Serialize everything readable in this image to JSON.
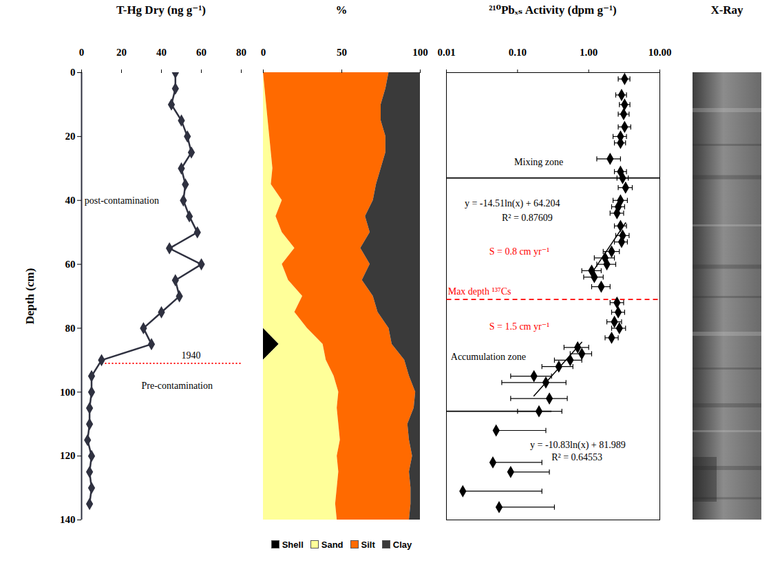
{
  "chart_data": [
    {
      "type": "line",
      "x_label": "T-Hg Dry (ng g⁻¹)",
      "y_label": "Depth (cm)",
      "xlim": [
        0,
        80
      ],
      "xticks": [
        0,
        20,
        40,
        60,
        80
      ],
      "ylim": [
        0,
        140
      ],
      "yticks": [
        0,
        20,
        40,
        60,
        80,
        100,
        120,
        140
      ],
      "color": "#2f3140",
      "marker": "diamond",
      "y": [
        0,
        5,
        10,
        15,
        20,
        25,
        30,
        35,
        40,
        45,
        50,
        55,
        60,
        65,
        70,
        75,
        80,
        85,
        90,
        95,
        100,
        105,
        110,
        115,
        120,
        125,
        130,
        135
      ],
      "values": [
        47,
        47,
        45,
        50,
        53,
        55,
        50,
        52,
        51,
        54,
        58,
        44,
        60,
        47,
        49,
        40,
        31,
        35,
        10,
        5,
        5,
        4,
        4,
        3,
        5,
        4,
        5,
        4
      ],
      "lines": [
        {
          "y": 91,
          "x": [
            10,
            80
          ],
          "color": "#ff0000",
          "line_style": "dotted"
        }
      ],
      "annotations": [
        {
          "text": "post-contamination",
          "x": 1.5,
          "y": 40
        },
        {
          "text": "1940",
          "x": 50,
          "y": 88.5
        },
        {
          "text": "Pre-contamination",
          "x": 30,
          "y": 98
        }
      ]
    },
    {
      "type": "area",
      "x_label": "%",
      "xlim": [
        0,
        100
      ],
      "xticks": [
        0,
        50,
        100
      ],
      "ylim": [
        0,
        140
      ],
      "stacked": true,
      "legend": "bottom",
      "tick_labels": "x",
      "y": [
        0,
        5,
        10,
        15,
        20,
        25,
        30,
        35,
        40,
        45,
        50,
        55,
        60,
        65,
        70,
        75,
        80,
        85,
        90,
        95,
        100,
        105,
        110,
        115,
        120,
        125,
        130,
        135,
        140
      ],
      "series": [
        {
          "name": "Shell",
          "color": "#000000",
          "values": [
            0,
            0,
            0,
            0,
            0,
            0,
            0,
            0,
            0,
            0,
            0,
            0,
            0,
            0,
            0,
            0,
            0,
            10,
            0,
            0,
            0,
            0,
            0,
            0,
            0,
            0,
            0,
            0,
            0
          ]
        },
        {
          "name": "Sand",
          "color": "#ffff99",
          "values": [
            0,
            1,
            2,
            3,
            4,
            5,
            6,
            5,
            12,
            8,
            12,
            20,
            12,
            16,
            25,
            20,
            28,
            28,
            40,
            45,
            48,
            47,
            48,
            49,
            47,
            48,
            47,
            46,
            47
          ]
        },
        {
          "name": "Silt",
          "color": "#ff6a00",
          "values": [
            80,
            77,
            73,
            72,
            74,
            73,
            69,
            67,
            58,
            57,
            56,
            42,
            56,
            47,
            45,
            53,
            52,
            44,
            50,
            48,
            49,
            49,
            44,
            44,
            48,
            45,
            47,
            48,
            46
          ]
        },
        {
          "name": "Clay",
          "color": "#3a3a3a",
          "values": [
            20,
            22,
            25,
            25,
            22,
            22,
            25,
            28,
            30,
            35,
            32,
            38,
            32,
            37,
            30,
            27,
            20,
            18,
            10,
            7,
            3,
            4,
            8,
            7,
            5,
            7,
            6,
            6,
            7
          ]
        }
      ]
    },
    {
      "type": "scatter",
      "x_label": "²¹⁰Pbₓₛ Activity (dpm g⁻¹)",
      "log": "x",
      "xlim": [
        0.01,
        10
      ],
      "xticks": [
        0.01,
        {
          "value": 0.1,
          "label": "0.10"
        },
        {
          "value": 1,
          "label": "1.00"
        },
        {
          "value": 10,
          "label": "10.00"
        }
      ],
      "ylim": [
        0,
        140
      ],
      "tick_labels": "x",
      "color": "#000000",
      "marker": "diamond",
      "y": [
        2,
        7,
        10,
        13,
        17,
        20,
        22,
        27,
        31,
        33,
        36,
        40,
        42,
        44,
        48,
        51,
        53,
        56,
        58,
        60,
        62,
        64,
        67,
        72,
        75,
        78,
        80,
        83,
        86,
        88,
        90,
        92,
        95,
        97,
        102,
        106,
        112,
        122,
        125,
        131,
        136
      ],
      "values": [
        3.2,
        2.9,
        3.2,
        3.1,
        3.2,
        2.8,
        2.8,
        2.0,
        2.8,
        3.0,
        3.3,
        2.8,
        2.6,
        2.5,
        2.8,
        3.0,
        2.9,
        2.1,
        1.7,
        1.8,
        1.1,
        1.2,
        1.5,
        2.5,
        2.6,
        2.3,
        2.7,
        2.1,
        0.7,
        0.8,
        0.55,
        0.38,
        0.17,
        0.25,
        0.28,
        0.2,
        0.05,
        0.045,
        0.08,
        0.017,
        0.055
      ],
      "error_low": [
        2.6,
        2.4,
        2.7,
        2.6,
        2.6,
        2.2,
        2.3,
        1.3,
        2.3,
        2.5,
        2.6,
        2.2,
        2.1,
        2.0,
        2.3,
        2.4,
        2.3,
        1.6,
        1.2,
        1.3,
        0.8,
        0.85,
        1.1,
        2.0,
        2.1,
        1.8,
        2.1,
        1.7,
        0.45,
        0.55,
        0.33,
        0.22,
        0.08,
        0.06,
        0.08,
        0.1,
        0.05,
        0.045,
        0.08,
        0.017,
        0.055
      ],
      "error_high": [
        3.8,
        3.4,
        3.8,
        3.7,
        3.9,
        3.4,
        3.3,
        2.8,
        3.4,
        3.6,
        4.1,
        3.5,
        3.2,
        3.1,
        3.4,
        3.7,
        3.5,
        2.7,
        2.3,
        2.4,
        1.5,
        1.6,
        2.0,
        3.1,
        3.2,
        2.9,
        3.3,
        2.6,
        1.0,
        1.1,
        0.8,
        0.6,
        0.3,
        0.48,
        0.5,
        0.42,
        0.25,
        0.22,
        0.28,
        0.22,
        0.33
      ],
      "fit_lines": [
        {
          "x": [
            3.3,
            1.1
          ],
          "y": [
            47,
            62.8
          ]
        },
        {
          "x": [
            0.8,
            0.17
          ],
          "y": [
            84.4,
            101.2
          ]
        }
      ],
      "lines": [
        {
          "y": 33,
          "x": [
            0.01,
            10
          ],
          "color": "#000000",
          "line_style": "solid"
        },
        {
          "y": 106,
          "x": [
            0.01,
            0.3
          ],
          "color": "#000000",
          "line_style": "solid"
        },
        {
          "y": 71,
          "x": [
            0.01,
            10
          ],
          "color": "#ff0000",
          "line_style": "dashed"
        }
      ],
      "annotations": [
        {
          "text": "Mixing zone",
          "x": 0.09,
          "y": 28
        },
        {
          "text": "y = -14.51ln(x) + 64.204",
          "x": 0.018,
          "y": 41
        },
        {
          "text": "R² = 0.87609",
          "x": 0.06,
          "y": 45.5
        },
        {
          "text": "S = 0.8 cm yr⁻¹",
          "x": 0.04,
          "y": 56,
          "color": "#ff0000"
        },
        {
          "text": "Max depth ¹³⁷Cs",
          "x": 0.0105,
          "y": 68.5,
          "color": "#ff0000"
        },
        {
          "text": "S = 1.5 cm yr⁻¹",
          "x": 0.04,
          "y": 79.5,
          "color": "#ff0000"
        },
        {
          "text": "Accumulation zone",
          "x": 0.0115,
          "y": 89
        },
        {
          "text": "y = -10.83ln(x) + 81.989",
          "x": 0.15,
          "y": 116.5
        },
        {
          "text": "R² = 0.64553",
          "x": 0.3,
          "y": 120.5
        }
      ]
    },
    {
      "type": "image",
      "title": "X-Ray",
      "tick_labels": false
    }
  ]
}
